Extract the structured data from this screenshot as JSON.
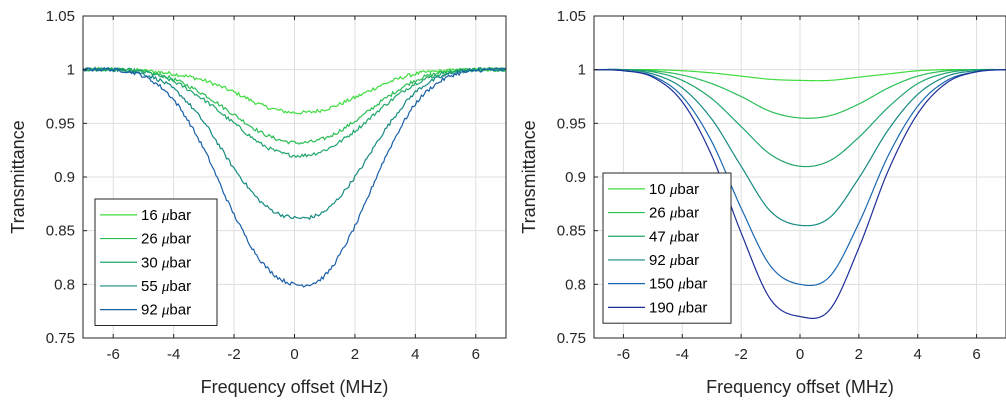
{
  "chart_data": [
    {
      "type": "line",
      "title": "",
      "xlabel": "Frequency offset (MHz)",
      "ylabel": "Transmittance",
      "xlim": [
        -7,
        7
      ],
      "ylim": [
        0.75,
        1.05
      ],
      "xticks": [
        -6,
        -4,
        -2,
        0,
        2,
        4,
        6
      ],
      "yticks": [
        0.75,
        0.8,
        0.85,
        0.9,
        0.95,
        1,
        1.05
      ],
      "xtick_labels": [
        "-6",
        "-4",
        "-2",
        "0",
        "2",
        "4",
        "6"
      ],
      "ytick_labels": [
        "0.75",
        "0.8",
        "0.85",
        "0.9",
        "0.95",
        "1",
        "1.05"
      ],
      "grid": true,
      "legend_position": "bottom-left",
      "noisy": true,
      "series": [
        {
          "name": "16 μbar",
          "color": "#3fdc3f",
          "x": [
            -7,
            -6,
            -5,
            -4,
            -3,
            -2,
            -1,
            0,
            1,
            2,
            3,
            4,
            5,
            6,
            7
          ],
          "y": [
            1.0,
            1.0,
            0.999,
            0.996,
            0.99,
            0.979,
            0.966,
            0.96,
            0.963,
            0.974,
            0.987,
            0.996,
            0.999,
            1.0,
            1.0
          ]
        },
        {
          "name": "26 μbar",
          "color": "#2cbf55",
          "x": [
            -7,
            -6,
            -5,
            -4,
            -3,
            -2,
            -1,
            0,
            1,
            2,
            3,
            4,
            5,
            6,
            7
          ],
          "y": [
            1.0,
            1.0,
            0.998,
            0.991,
            0.977,
            0.958,
            0.94,
            0.932,
            0.936,
            0.952,
            0.973,
            0.99,
            0.998,
            1.0,
            1.0
          ]
        },
        {
          "name": "30 μbar",
          "color": "#20a66a",
          "x": [
            -7,
            -6,
            -5,
            -4,
            -3,
            -2,
            -1,
            0,
            1,
            2,
            3,
            4,
            5,
            6,
            7
          ],
          "y": [
            1.0,
            1.0,
            0.998,
            0.989,
            0.972,
            0.95,
            0.929,
            0.92,
            0.925,
            0.943,
            0.967,
            0.987,
            0.997,
            1.0,
            1.0
          ]
        },
        {
          "name": "55 μbar",
          "color": "#168a80",
          "x": [
            -7,
            -6,
            -5,
            -4,
            -3,
            -2,
            -1,
            0,
            1,
            2,
            3,
            4,
            5,
            6,
            7
          ],
          "y": [
            1.0,
            1.0,
            0.996,
            0.982,
            0.951,
            0.908,
            0.874,
            0.862,
            0.868,
            0.9,
            0.944,
            0.979,
            0.995,
            1.0,
            1.0
          ]
        },
        {
          "name": "92 μbar",
          "color": "#1a5fa8",
          "x": [
            -7,
            -6,
            -5,
            -4,
            -3,
            -2,
            -1,
            0,
            1,
            2,
            3,
            4,
            5,
            6,
            7
          ],
          "y": [
            1.0,
            1.0,
            0.994,
            0.972,
            0.926,
            0.865,
            0.818,
            0.8,
            0.808,
            0.854,
            0.918,
            0.968,
            0.992,
            0.999,
            1.0
          ]
        }
      ]
    },
    {
      "type": "line",
      "title": "",
      "xlabel": "Frequency offset (MHz)",
      "ylabel": "Transmittance",
      "xlim": [
        -7,
        7
      ],
      "ylim": [
        0.75,
        1.05
      ],
      "xticks": [
        -6,
        -4,
        -2,
        0,
        2,
        4,
        6
      ],
      "yticks": [
        0.75,
        0.8,
        0.85,
        0.9,
        0.95,
        1,
        1.05
      ],
      "xtick_labels": [
        "-6",
        "-4",
        "-2",
        "0",
        "2",
        "4",
        "6"
      ],
      "ytick_labels": [
        "0.75",
        "0.8",
        "0.85",
        "0.9",
        "0.95",
        "1",
        "1.05"
      ],
      "grid": true,
      "legend_position": "bottom-left",
      "noisy": false,
      "series": [
        {
          "name": "10 μbar",
          "color": "#3fdc3f",
          "x": [
            -7,
            -6,
            -5,
            -4,
            -3,
            -2,
            -1,
            0,
            1,
            2,
            3,
            4,
            5,
            6,
            7
          ],
          "y": [
            1.0,
            1.0,
            1.0,
            0.999,
            0.997,
            0.994,
            0.991,
            0.99,
            0.99,
            0.993,
            0.996,
            0.999,
            1.0,
            1.0,
            1.0
          ]
        },
        {
          "name": "26 μbar",
          "color": "#2cbf55",
          "x": [
            -7,
            -6,
            -5,
            -4,
            -3,
            -2,
            -1,
            0,
            1,
            2,
            3,
            4,
            5,
            6,
            7
          ],
          "y": [
            1.0,
            1.0,
            0.999,
            0.995,
            0.987,
            0.975,
            0.961,
            0.955,
            0.957,
            0.968,
            0.983,
            0.994,
            0.999,
            1.0,
            1.0
          ]
        },
        {
          "name": "47 μbar",
          "color": "#20a66a",
          "x": [
            -7,
            -6,
            -5,
            -4,
            -3,
            -2,
            -1,
            0,
            1,
            2,
            3,
            4,
            5,
            6,
            7
          ],
          "y": [
            1.0,
            1.0,
            0.998,
            0.99,
            0.973,
            0.947,
            0.921,
            0.91,
            0.915,
            0.937,
            0.965,
            0.987,
            0.997,
            1.0,
            1.0
          ]
        },
        {
          "name": "92 μbar",
          "color": "#168a80",
          "x": [
            -7,
            -6,
            -5,
            -4,
            -3,
            -2,
            -1,
            0,
            1,
            2,
            3,
            4,
            5,
            6,
            7
          ],
          "y": [
            1.0,
            1.0,
            0.996,
            0.983,
            0.954,
            0.91,
            0.868,
            0.855,
            0.862,
            0.899,
            0.944,
            0.977,
            0.994,
            0.999,
            1.0
          ]
        },
        {
          "name": "150 μbar",
          "color": "#1a68b0",
          "x": [
            -7,
            -6,
            -5,
            -4,
            -3,
            -2,
            -1,
            0,
            1,
            2,
            3,
            4,
            5,
            6,
            7
          ],
          "y": [
            1.0,
            0.999,
            0.994,
            0.975,
            0.933,
            0.871,
            0.817,
            0.8,
            0.807,
            0.857,
            0.92,
            0.966,
            0.99,
            0.998,
            1.0
          ]
        },
        {
          "name": "190 μbar",
          "color": "#1f2f9a",
          "x": [
            -7,
            -6,
            -5,
            -4,
            -3,
            -2,
            -1,
            0,
            1,
            2,
            3,
            4,
            5,
            6,
            7
          ],
          "y": [
            1.0,
            0.999,
            0.993,
            0.97,
            0.92,
            0.848,
            0.786,
            0.77,
            0.776,
            0.834,
            0.906,
            0.959,
            0.988,
            0.998,
            1.0
          ]
        }
      ]
    }
  ]
}
